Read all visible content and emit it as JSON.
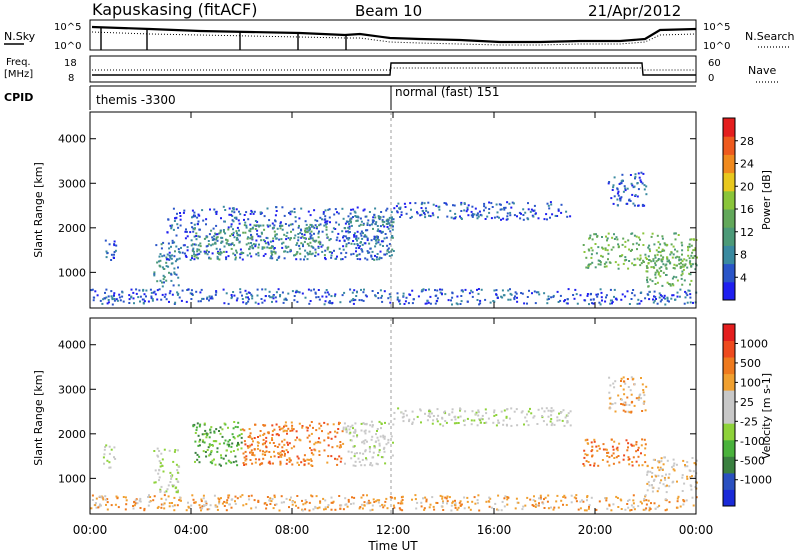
{
  "header": {
    "station": "Kapuskasing (fitACF)",
    "beam": "Beam 10",
    "date": "21/Apr/2012"
  },
  "noise_panel": {
    "left_label": "N.Sky",
    "right_label": "N.Search",
    "left_ticks": [
      "10^5",
      "10^0"
    ],
    "right_ticks": [
      "10^5",
      "10^0"
    ]
  },
  "freq_panel": {
    "left_label_1": "Freq.",
    "left_label_2": "[MHz]",
    "right_label": "Nave",
    "left_ticks": [
      "18",
      "8"
    ],
    "right_ticks": [
      "60",
      "0"
    ]
  },
  "cpid_panel": {
    "label": "CPID",
    "modes": [
      {
        "label": "themis -3300",
        "start_hour": 0
      },
      {
        "label": "normal (fast) 151",
        "start_hour": 12
      }
    ]
  },
  "x_axis": {
    "label": "Time UT",
    "ticks": [
      "00:00",
      "04:00",
      "08:00",
      "12:00",
      "16:00",
      "20:00",
      "00:00"
    ],
    "range_hours": [
      0,
      24
    ]
  },
  "chart_data": [
    {
      "type": "heatmap",
      "quantity": "power",
      "ylabel": "Slant Range [km]",
      "yticks": [
        "1000",
        "2000",
        "3000",
        "4000"
      ],
      "ylim": [
        200,
        4600
      ],
      "xlim_hours": [
        0,
        24
      ],
      "colorbar": {
        "label": "Power [dB]",
        "ticks": [
          "4",
          "8",
          "12",
          "16",
          "20",
          "24",
          "28"
        ],
        "colors": [
          "#1f1ff0",
          "#2a55c8",
          "#3a8aa0",
          "#4c9a78",
          "#62a85a",
          "#8ac53a",
          "#e8c81e",
          "#f08a1e",
          "#ee5a1e",
          "#e41e1e"
        ]
      },
      "regions": [
        {
          "x0": 0.5,
          "x1": 1.0,
          "y0": 1250,
          "y1": 1800,
          "level": 1
        },
        {
          "x0": 2.5,
          "x1": 3.5,
          "y0": 700,
          "y1": 1700,
          "level": 2
        },
        {
          "x0": 3.0,
          "x1": 12.0,
          "y0": 1300,
          "y1": 2500,
          "level": 1
        },
        {
          "x0": 4.0,
          "x1": 6.0,
          "y0": 1300,
          "y1": 2000,
          "level": 3
        },
        {
          "x0": 6.0,
          "x1": 9.5,
          "y0": 1400,
          "y1": 2100,
          "level": 3
        },
        {
          "x0": 10.0,
          "x1": 12.0,
          "y0": 1300,
          "y1": 2300,
          "level": 2
        },
        {
          "x0": 12.0,
          "x1": 19.0,
          "y0": 2200,
          "y1": 2600,
          "level": 1
        },
        {
          "x0": 19.5,
          "x1": 24.0,
          "y0": 1100,
          "y1": 1900,
          "level": 4
        },
        {
          "x0": 20.5,
          "x1": 22.0,
          "y0": 2500,
          "y1": 3300,
          "level": 1
        },
        {
          "x0": 22.0,
          "x1": 24.0,
          "y0": 700,
          "y1": 1400,
          "level": 4
        },
        {
          "x0": 0.0,
          "x1": 24.0,
          "y0": 300,
          "y1": 650,
          "level": 1
        }
      ]
    },
    {
      "type": "heatmap",
      "quantity": "velocity",
      "ylabel": "Slant Range [km]",
      "yticks": [
        "1000",
        "2000",
        "3000",
        "4000"
      ],
      "ylim": [
        200,
        4600
      ],
      "xlim_hours": [
        0,
        24
      ],
      "colorbar": {
        "label": "Velocity [m s-1]",
        "ticks": [
          "1000",
          "500",
          "100",
          "25",
          "-25",
          "-100",
          "-500",
          "-1000"
        ],
        "colors": [
          "#1a2ad8",
          "#2a50c0",
          "#3a8040",
          "#4ab23c",
          "#8ed23a",
          "#c8c8c8",
          "#c8c8c8",
          "#f0a030",
          "#ee7a1e",
          "#ee4a1e",
          "#e41e1e"
        ]
      },
      "regions": [
        {
          "x0": 0.5,
          "x1": 1.0,
          "y0": 1250,
          "y1": 1800,
          "level": 5
        },
        {
          "x0": 2.5,
          "x1": 3.5,
          "y0": 700,
          "y1": 1700,
          "level": 5
        },
        {
          "x0": 4.0,
          "x1": 6.0,
          "y0": 1300,
          "y1": 2300,
          "level": 3
        },
        {
          "x0": 6.0,
          "x1": 10.0,
          "y0": 1300,
          "y1": 2300,
          "level": 8
        },
        {
          "x0": 10.0,
          "x1": 12.0,
          "y0": 1300,
          "y1": 2300,
          "level": 5
        },
        {
          "x0": 12.0,
          "x1": 19.0,
          "y0": 2200,
          "y1": 2600,
          "level": 5
        },
        {
          "x0": 19.5,
          "x1": 22.0,
          "y0": 1300,
          "y1": 1900,
          "level": 8
        },
        {
          "x0": 20.5,
          "x1": 22.0,
          "y0": 2500,
          "y1": 3300,
          "level": 7
        },
        {
          "x0": 22.0,
          "x1": 24.0,
          "y0": 700,
          "y1": 1500,
          "level": 6
        },
        {
          "x0": 0.0,
          "x1": 24.0,
          "y0": 300,
          "y1": 650,
          "level": 7
        }
      ]
    }
  ]
}
